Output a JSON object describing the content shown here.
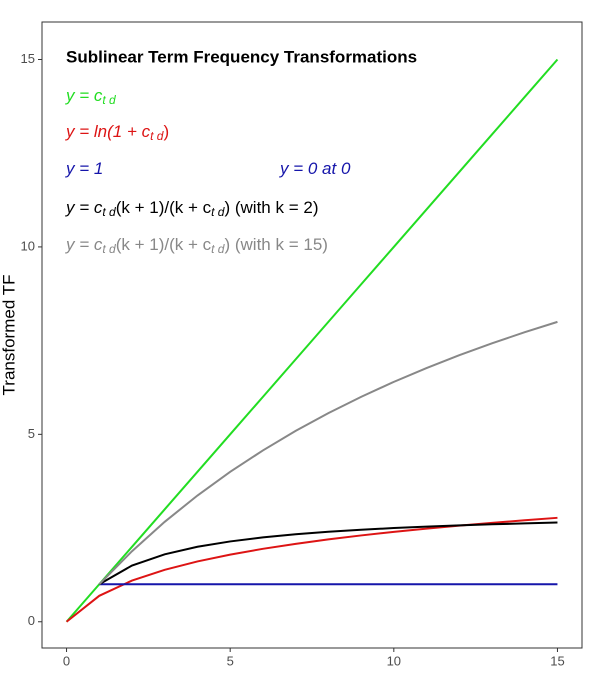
{
  "chart_data": {
    "type": "line",
    "title": "Sublinear Term Frequency Transformations",
    "y_label": "Transformed TF",
    "x": [
      0,
      1,
      2,
      3,
      4,
      5,
      6,
      7,
      8,
      9,
      10,
      11,
      12,
      13,
      14,
      15
    ],
    "series": [
      {
        "name": "y = ctd",
        "color": "#22dd22",
        "values": [
          0,
          1,
          2,
          3,
          4,
          5,
          6,
          7,
          8,
          9,
          10,
          11,
          12,
          13,
          14,
          15
        ]
      },
      {
        "name": "y = ln(1 + ctd)",
        "color": "#dd1414",
        "values": [
          0,
          0.693,
          1.099,
          1.386,
          1.609,
          1.792,
          1.946,
          2.079,
          2.197,
          2.303,
          2.398,
          2.485,
          2.565,
          2.639,
          2.708,
          2.773
        ]
      },
      {
        "name": "y = 1",
        "color": "#1515aa",
        "values": [
          null,
          1,
          1,
          1,
          1,
          1,
          1,
          1,
          1,
          1,
          1,
          1,
          1,
          1,
          1,
          1
        ]
      },
      {
        "name": "k = 2",
        "color": "#000000",
        "values": [
          null,
          1,
          1.5,
          1.8,
          2,
          2.143,
          2.25,
          2.333,
          2.4,
          2.455,
          2.5,
          2.538,
          2.571,
          2.6,
          2.625,
          2.647
        ]
      },
      {
        "name": "k = 15",
        "color": "#888888",
        "values": [
          null,
          1,
          1.882,
          2.667,
          3.368,
          4,
          4.571,
          5.091,
          5.565,
          6,
          6.4,
          6.769,
          7.111,
          7.429,
          7.724,
          8
        ]
      }
    ],
    "annotations": [
      {
        "color": "#22dd22",
        "segments": [
          "y = c",
          {
            "sub": "t d"
          }
        ]
      },
      {
        "color": "#dd1414",
        "segments": [
          "y = ln(1 + c",
          {
            "sub": "t d"
          },
          ")"
        ]
      },
      {
        "color": "#1515aa",
        "segments": [
          "y = 1"
        ]
      },
      {
        "color": "#1515aa",
        "segments": [
          "y = 0 at 0"
        ]
      },
      {
        "color": "#000000",
        "segments": [
          "y = c",
          {
            "sub": "t d"
          },
          "(k + 1)/(k + c",
          {
            "sub": "t d"
          },
          ")  (with k = 2)"
        ]
      },
      {
        "color": "#888888",
        "segments": [
          "y = c",
          {
            "sub": "t d"
          },
          "(k + 1)/(k + c",
          {
            "sub": "t d"
          },
          ")  (with k = 15)"
        ]
      }
    ],
    "xlim": [
      -0.75,
      15.75
    ],
    "ylim": [
      -0.7,
      16
    ],
    "xticks": [
      0,
      5,
      10,
      15
    ],
    "yticks": [
      0,
      5,
      10,
      15
    ],
    "grid": false
  }
}
